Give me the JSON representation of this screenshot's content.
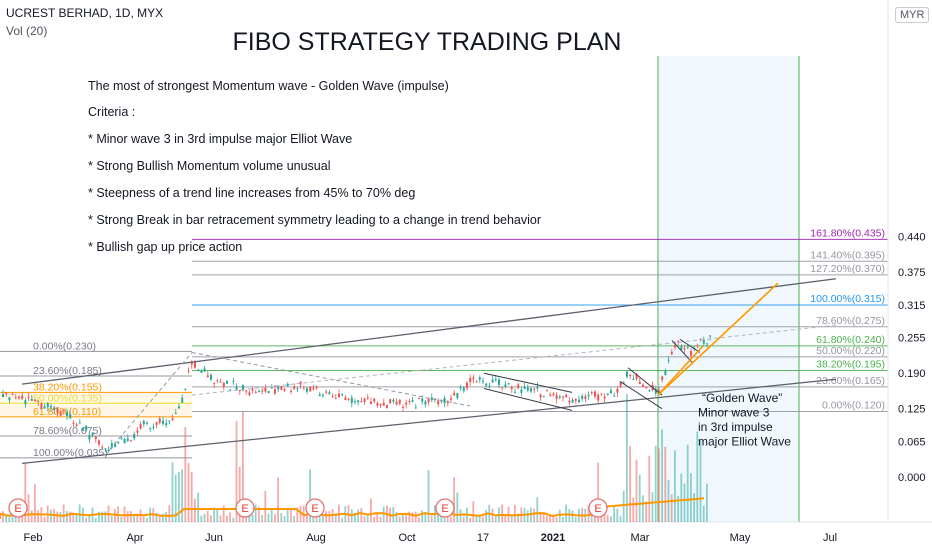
{
  "header": {
    "symbol": "UCREST BERHAD, 1D, MYX",
    "volume_label": "Vol (20)",
    "currency": "MYR"
  },
  "chart_data": {
    "type": "candlestick",
    "title": "FIBO STRATEGY TRADING PLAN",
    "x_labels": [
      "Feb",
      "Apr",
      "Jun",
      "Aug",
      "Oct",
      "17",
      "2021",
      "Mar",
      "May",
      "Jul"
    ],
    "y_ticks": [
      0.0,
      0.065,
      0.125,
      0.19,
      0.255,
      0.315,
      0.375,
      0.44
    ],
    "last_price": 0.255,
    "ylim": [
      0.0,
      0.45
    ],
    "notes": [
      "The most of strongest Momentum wave - Golden Wave (impulse)",
      "Criteria :",
      "* Minor wave 3 in 3rd impulse major Elliot Wave",
      "* Strong Bullish Momentum volume unusual",
      "* Steepness of a trend line increases from 45% to 70% deg",
      "* Strong Break in bar retracement symmetry leading to a change in trend behavior",
      "* Bullish gap up price action"
    ],
    "annotation_lines": [
      "“Golden Wave”",
      "Minor wave 3",
      "in 3rd impulse",
      "major Elliot Wave"
    ],
    "fib_left": [
      {
        "label": "0.00%(0.230)",
        "value": 0.23,
        "color": "#9598a1"
      },
      {
        "label": "23.60%(0.185)",
        "value": 0.185,
        "color": "#9598a1"
      },
      {
        "label": "38.20%(0.155)",
        "value": 0.155,
        "color": "#ff9800"
      },
      {
        "label": "50.00%(0.135)",
        "value": 0.135,
        "color": "#f2d635"
      },
      {
        "label": "61.80%(0.110)",
        "value": 0.11,
        "color": "#ff9800"
      },
      {
        "label": "78.60%(0.075)",
        "value": 0.075,
        "color": "#9598a1"
      },
      {
        "label": "100.00%(0.035)",
        "value": 0.035,
        "color": "#9598a1"
      }
    ],
    "fib_right": [
      {
        "label": "161.80%(0.435)",
        "value": 0.435,
        "color": "#9c27b0"
      },
      {
        "label": "141.40%(0.395)",
        "value": 0.395,
        "color": "#9598a1"
      },
      {
        "label": "127.20%(0.370)",
        "value": 0.37,
        "color": "#9598a1"
      },
      {
        "label": "100.00%(0.315)",
        "value": 0.315,
        "color": "#2196f3"
      },
      {
        "label": "78.60%(0.275)",
        "value": 0.275,
        "color": "#9598a1"
      },
      {
        "label": "61.80%(0.240)",
        "value": 0.24,
        "color": "#4caf50"
      },
      {
        "label": "50.00%(0.220)",
        "value": 0.22,
        "color": "#9598a1"
      },
      {
        "label": "38.20%(0.195)",
        "value": 0.195,
        "color": "#4caf50"
      },
      {
        "label": "23.60%(0.165)",
        "value": 0.165,
        "color": "#9598a1"
      },
      {
        "label": "0.00%(0.120)",
        "value": 0.12,
        "color": "#9598a1"
      }
    ],
    "earnings_marker": "E",
    "earnings_count": 6
  }
}
